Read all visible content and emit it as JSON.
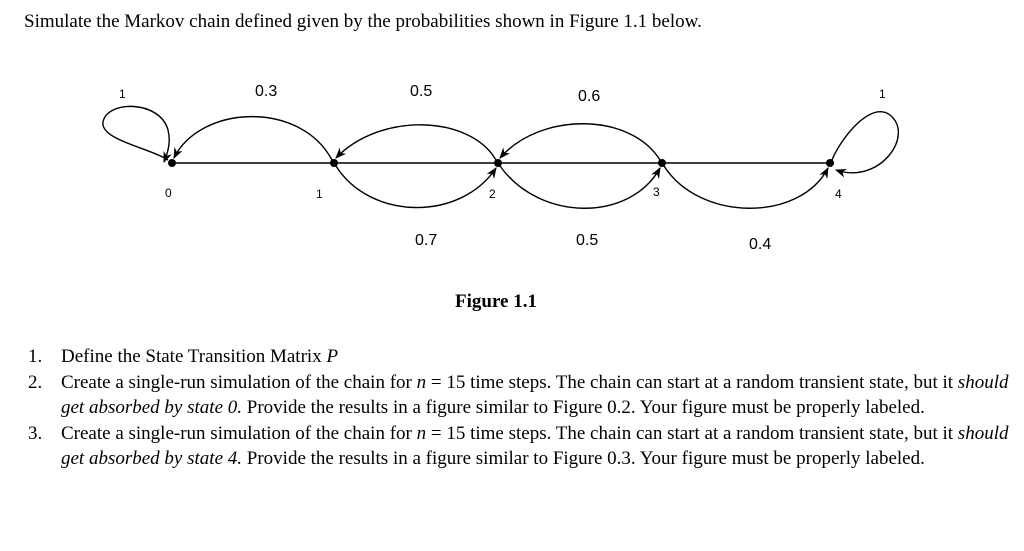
{
  "intro": "Simulate the Markov chain defined given by the probabilities shown in Figure 1.1 below.",
  "diagram": {
    "states": [
      "0",
      "1",
      "2",
      "3",
      "4"
    ],
    "edges": [
      {
        "from": "0",
        "to": "0",
        "probability": "1"
      },
      {
        "from": "1",
        "to": "0",
        "probability": "0.3"
      },
      {
        "from": "1",
        "to": "2",
        "probability": "0.7"
      },
      {
        "from": "2",
        "to": "1",
        "probability": "0.5"
      },
      {
        "from": "2",
        "to": "3",
        "probability": "0.5"
      },
      {
        "from": "3",
        "to": "2",
        "probability": "0.6"
      },
      {
        "from": "3",
        "to": "4",
        "probability": "0.4"
      },
      {
        "from": "4",
        "to": "4",
        "probability": "1"
      }
    ]
  },
  "caption": "Figure 1.1",
  "tasks": [
    {
      "number": "1.",
      "text_before": "Define the State Transition Matrix ",
      "math": "P"
    },
    {
      "number": "2.",
      "text_a": "Create a single-run simulation of the chain for ",
      "math_var": "n",
      "math_eq": " = 15",
      "text_b": " time steps. The chain can start at a random transient state, but it ",
      "emph": "should get absorbed by state 0.",
      "text_c": " Provide the results in a figure similar to Figure 0.2. Your figure must be properly labeled."
    },
    {
      "number": "3.",
      "text_a": "Create a single-run simulation of the chain for ",
      "math_var": "n",
      "math_eq": " = 15",
      "text_b": " time steps. The chain can start at a random transient state, but it ",
      "emph": "should get absorbed by state 4.",
      "text_c": " Provide the results in a figure similar to Figure 0.3. Your figure must be properly labeled."
    }
  ]
}
